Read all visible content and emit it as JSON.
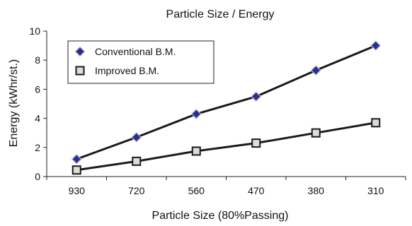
{
  "chart_data": {
    "type": "line",
    "title": "Particle Size / Energy",
    "xlabel": "Particle Size (80%Passing)",
    "ylabel": "Energy (kWhr/st.)",
    "categories": [
      "930",
      "720",
      "560",
      "470",
      "380",
      "310"
    ],
    "ylim": [
      0,
      10
    ],
    "yticks": [
      0,
      2,
      4,
      6,
      8,
      10
    ],
    "grid": false,
    "legend_position": "top-left",
    "series": [
      {
        "name": "Conventional B.M.",
        "marker": "diamond",
        "marker_color": "#2b2f8f",
        "values": [
          1.2,
          2.7,
          4.3,
          5.5,
          7.3,
          9.0
        ]
      },
      {
        "name": "Improved B.M.",
        "marker": "square",
        "marker_color": "#dcdcdc",
        "values": [
          0.45,
          1.05,
          1.75,
          2.3,
          3.0,
          3.7
        ]
      }
    ],
    "line_color": "#1a1a1a"
  }
}
